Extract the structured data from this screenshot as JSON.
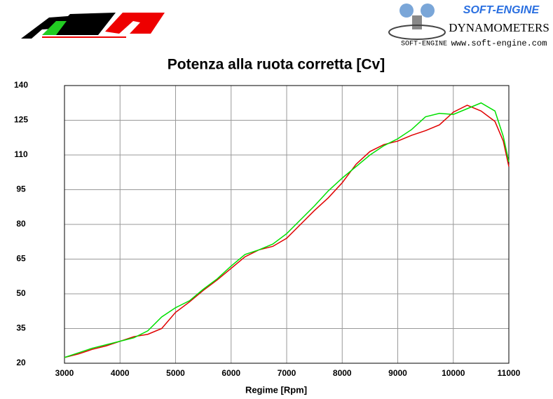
{
  "logo_texts": {
    "brand": "SOFT-ENGINE",
    "product": "DYNAMOMETERS",
    "signature": "SOFT-ENGINE",
    "website": "www.soft-engine.com"
  },
  "chart_data": {
    "type": "line",
    "title": "Potenza alla ruota corretta [Cv]",
    "x_label": "Regime [Rpm]",
    "x": [
      3000,
      3250,
      3500,
      3750,
      4000,
      4250,
      4500,
      4750,
      5000,
      5250,
      5500,
      5750,
      6000,
      6250,
      6500,
      6750,
      7000,
      7250,
      7500,
      7750,
      8000,
      8250,
      8500,
      8750,
      9000,
      9250,
      9500,
      9750,
      10000,
      10250,
      10500,
      10750,
      10900,
      11000
    ],
    "series": [
      {
        "color": "#e00000",
        "values": [
          22.5,
          24,
          26,
          27.5,
          29.5,
          31.5,
          32.5,
          35,
          42,
          46.5,
          51.5,
          56,
          61,
          66,
          69,
          70.5,
          74,
          80,
          86,
          91.5,
          98,
          106,
          111.5,
          114.5,
          116,
          118.5,
          120.5,
          123,
          128.5,
          131.5,
          129,
          124.5,
          116,
          105
        ]
      },
      {
        "color": "#00e000",
        "values": [
          22.5,
          24.5,
          26.5,
          28,
          29.5,
          31,
          34,
          40,
          44,
          47,
          52,
          56.5,
          62,
          67,
          69,
          71.5,
          76,
          82,
          88,
          94.5,
          100,
          105,
          110,
          114,
          117,
          121,
          126.5,
          128,
          127.5,
          130,
          132.5,
          129,
          118,
          107
        ]
      }
    ],
    "xlim": [
      3000,
      11000
    ],
    "xticks": [
      3000,
      4000,
      5000,
      6000,
      7000,
      8000,
      9000,
      10000,
      11000
    ],
    "ylim": [
      20,
      140
    ],
    "yticks": [
      20,
      35,
      50,
      65,
      80,
      95,
      110,
      125,
      140
    ],
    "grid": true
  }
}
